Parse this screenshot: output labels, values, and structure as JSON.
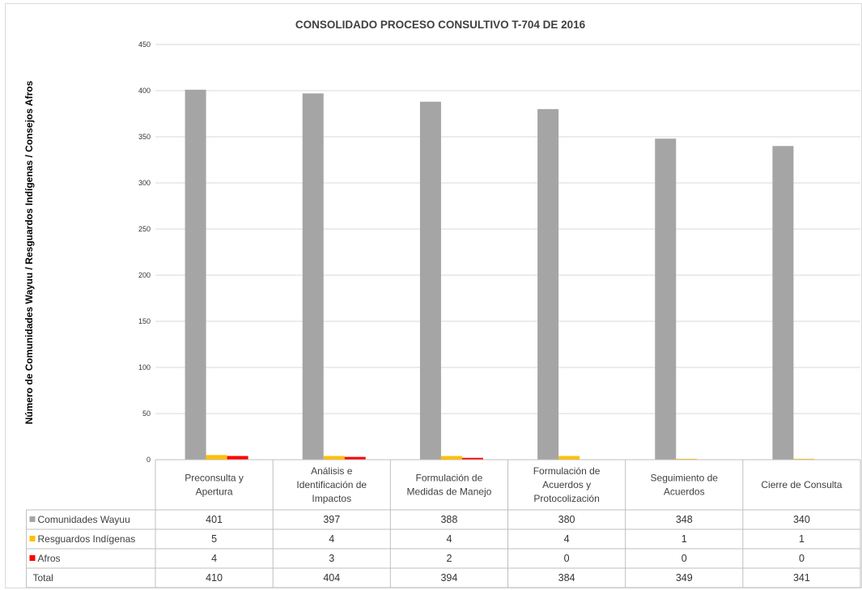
{
  "chart_data": {
    "type": "bar",
    "title": "CONSOLIDADO PROCESO CONSULTIVO T-704 DE 2016",
    "ylabel": "Número de Comunidades Wayuu / Resguardos Indígenas / Consejos Afros",
    "xlabel": "",
    "ylim": [
      0,
      450
    ],
    "yticks": [
      0,
      50,
      100,
      150,
      200,
      250,
      300,
      350,
      400,
      450
    ],
    "grid": true,
    "legend": "data-table",
    "categories": [
      [
        "Preconsulta y",
        "Apertura"
      ],
      [
        "Análisis e",
        "Identificación de",
        "Impactos"
      ],
      [
        "Formulación de",
        "Medidas de Manejo"
      ],
      [
        "Formulación de",
        "Acuerdos y",
        "Protocolización"
      ],
      [
        "Seguimiento de",
        "Acuerdos"
      ],
      [
        "Cierre de Consulta"
      ]
    ],
    "series": [
      {
        "name": "Comunidades Wayuu",
        "color": "#a5a5a5",
        "values": [
          401,
          397,
          388,
          380,
          348,
          340
        ]
      },
      {
        "name": "Resguardos Indígenas",
        "color": "#ffc000",
        "values": [
          5,
          4,
          4,
          4,
          1,
          1
        ]
      },
      {
        "name": "Afros",
        "color": "#ff0000",
        "values": [
          4,
          3,
          2,
          0,
          0,
          0
        ]
      }
    ],
    "total": {
      "name": "Total",
      "values": [
        410,
        404,
        394,
        384,
        349,
        341
      ]
    }
  }
}
